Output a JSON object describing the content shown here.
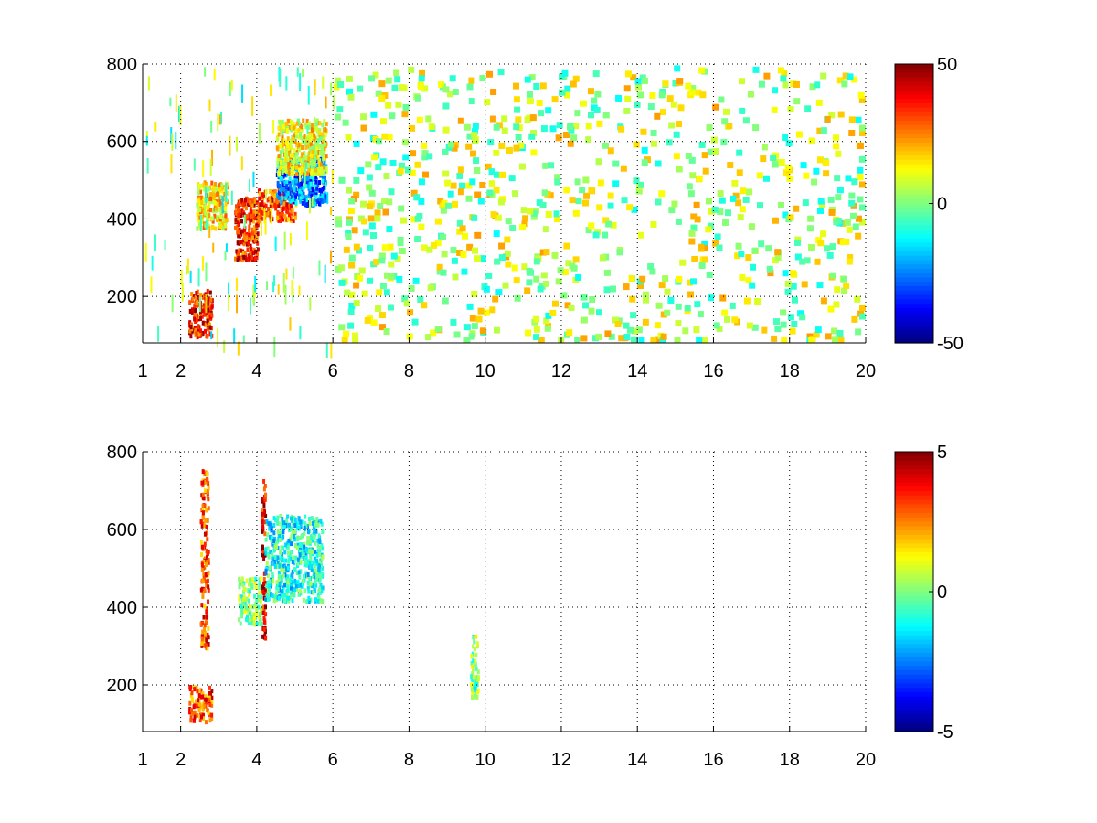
{
  "chart_data": [
    {
      "type": "heatmap",
      "title": "",
      "xlabel": "",
      "ylabel": "",
      "xlim": [
        1,
        20
      ],
      "ylim": [
        80,
        800
      ],
      "xticks": [
        1,
        2,
        4,
        6,
        8,
        10,
        12,
        14,
        16,
        18,
        20
      ],
      "yticks": [
        200,
        400,
        600,
        800
      ],
      "grid": true,
      "grid_style": "dotted",
      "colormap": "jet",
      "colorbar": {
        "min": -50,
        "max": 50,
        "ticks": [
          50,
          0,
          -50
        ],
        "placement": "right"
      },
      "background_color": "#ffffff",
      "regions": [
        {
          "x": [
            2.2,
            2.8
          ],
          "y": [
            100,
            220
          ],
          "level": 35
        },
        {
          "x": [
            2.4,
            3.2
          ],
          "y": [
            380,
            500
          ],
          "level": 15
        },
        {
          "x": [
            3.4,
            4.0
          ],
          "y": [
            300,
            460
          ],
          "level": 35
        },
        {
          "x": [
            4.0,
            5.0
          ],
          "y": [
            400,
            480
          ],
          "level": 30
        },
        {
          "x": [
            4.5,
            5.8
          ],
          "y": [
            440,
            560
          ],
          "level": -25
        },
        {
          "x": [
            4.5,
            5.8
          ],
          "y": [
            520,
            660
          ],
          "level": 12
        },
        {
          "x": [
            6,
            20
          ],
          "y": [
            80,
            800
          ],
          "level": 5
        }
      ]
    },
    {
      "type": "heatmap",
      "title": "",
      "xlabel": "",
      "ylabel": "",
      "xlim": [
        1,
        20
      ],
      "ylim": [
        80,
        800
      ],
      "xticks": [
        1,
        2,
        4,
        6,
        8,
        10,
        12,
        14,
        16,
        18,
        20
      ],
      "yticks": [
        200,
        400,
        600,
        800
      ],
      "grid": true,
      "grid_style": "dotted",
      "colormap": "jet",
      "colorbar": {
        "min": -5,
        "max": 5,
        "ticks": [
          5,
          0,
          -5
        ],
        "placement": "right"
      },
      "background_color": "#ffffff",
      "regions": [
        {
          "x": [
            2.2,
            2.8
          ],
          "y": [
            110,
            200
          ],
          "level": 3
        },
        {
          "x": [
            2.5,
            2.7
          ],
          "y": [
            300,
            760
          ],
          "level": 3
        },
        {
          "x": [
            3.5,
            4.1
          ],
          "y": [
            360,
            480
          ],
          "level": 0
        },
        {
          "x": [
            4.1,
            4.2
          ],
          "y": [
            320,
            730
          ],
          "level": 4
        },
        {
          "x": [
            4.2,
            5.7
          ],
          "y": [
            420,
            640
          ],
          "level": -1
        },
        {
          "x": [
            9.6,
            9.8
          ],
          "y": [
            170,
            340
          ],
          "level": 0
        }
      ]
    }
  ]
}
